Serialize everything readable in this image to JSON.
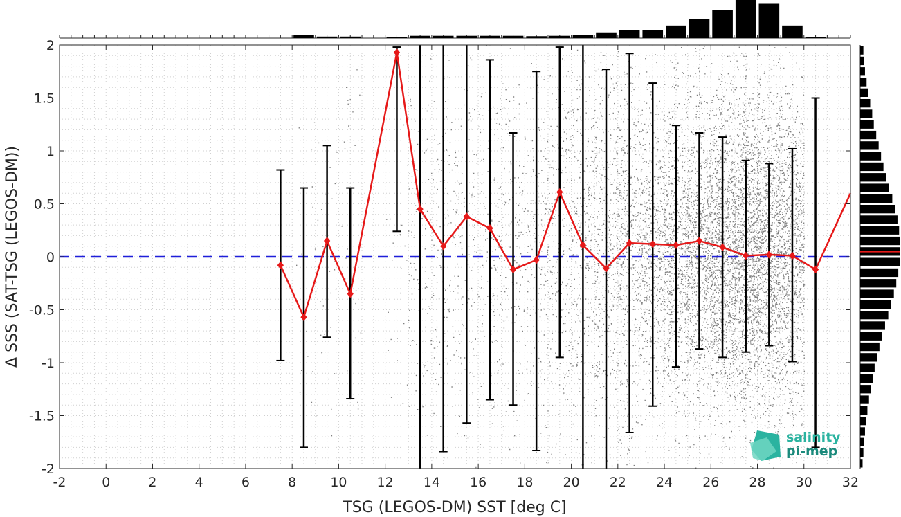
{
  "chart_data": {
    "type": "scatter",
    "xlabel": "TSG (LEGOS-DM) SST [deg C]",
    "ylabel": "Δ SSS (SAT-TSG (LEGOS-DM))",
    "xlim": [
      -2,
      32
    ],
    "ylim": [
      -2,
      2
    ],
    "x_ticks": [
      "-2",
      "0",
      "2",
      "4",
      "6",
      "8",
      "10",
      "12",
      "14",
      "16",
      "18",
      "20",
      "22",
      "24",
      "26",
      "28",
      "30",
      "32"
    ],
    "y_ticks": [
      "2",
      "1.5",
      "1",
      "0.5",
      "0",
      "-0.5",
      "-1",
      "-1.5",
      "-2"
    ],
    "grid": "dotted minor grid",
    "zero_line": {
      "y": 0,
      "style": "dashed",
      "color": "#1f1fd9"
    },
    "binned_mean": {
      "color": "#e61919",
      "x": [
        7.5,
        8.5,
        9.5,
        10.5,
        12.5,
        13.5,
        14.5,
        15.5,
        16.5,
        17.5,
        18.5,
        19.5,
        20.5,
        21.5,
        22.5,
        23.5,
        24.5,
        25.5,
        26.5,
        27.5,
        28.5,
        29.5,
        30.5,
        32
      ],
      "mean": [
        -0.08,
        -0.57,
        0.15,
        -0.35,
        1.93,
        0.45,
        0.1,
        0.38,
        0.27,
        -0.12,
        -0.03,
        0.61,
        0.11,
        -0.11,
        0.13,
        0.12,
        0.11,
        0.15,
        0.09,
        0.01,
        0.02,
        0.01,
        -0.12,
        0.6
      ],
      "err_low": [
        -0.98,
        -1.8,
        -0.76,
        -1.34,
        0.24,
        -2.0,
        -1.84,
        -1.57,
        -1.35,
        -1.4,
        -1.83,
        -0.95,
        -2.0,
        -2.0,
        -1.66,
        -1.41,
        -1.04,
        -0.87,
        -0.95,
        -0.9,
        -0.84,
        -0.99,
        -1.8,
        null
      ],
      "err_high": [
        0.82,
        0.65,
        1.05,
        0.65,
        1.98,
        2.0,
        2.0,
        2.0,
        1.86,
        1.17,
        1.75,
        1.98,
        2.0,
        1.77,
        1.92,
        1.64,
        1.24,
        1.17,
        1.13,
        0.91,
        0.88,
        1.02,
        1.5,
        null
      ]
    },
    "scatter_points": {
      "color": "#808080",
      "density_by_x": [
        {
          "x": 8.5,
          "w": 20
        },
        {
          "x": 9.5,
          "w": 30
        },
        {
          "x": 10.5,
          "w": 25
        },
        {
          "x": 12.5,
          "w": 25
        },
        {
          "x": 13.5,
          "w": 110
        },
        {
          "x": 14.5,
          "w": 130
        },
        {
          "x": 15.5,
          "w": 140
        },
        {
          "x": 16.5,
          "w": 140
        },
        {
          "x": 17.5,
          "w": 150
        },
        {
          "x": 18.5,
          "w": 180
        },
        {
          "x": 19.5,
          "w": 230
        },
        {
          "x": 20.5,
          "w": 310
        },
        {
          "x": 21.5,
          "w": 420
        },
        {
          "x": 22.5,
          "w": 520
        },
        {
          "x": 23.5,
          "w": 620
        },
        {
          "x": 24.5,
          "w": 800
        },
        {
          "x": 25.5,
          "w": 950
        },
        {
          "x": 26.5,
          "w": 1150
        },
        {
          "x": 27.5,
          "w": 1350
        },
        {
          "x": 28.5,
          "w": 1250
        },
        {
          "x": 29.5,
          "w": 900
        }
      ]
    },
    "top_histogram": {
      "color": "#000000",
      "x": [
        8.5,
        9.5,
        10.5,
        12.5,
        13.5,
        14.5,
        15.5,
        16.5,
        17.5,
        18.5,
        19.5,
        20.5,
        21.5,
        22.5,
        23.5,
        24.5,
        25.5,
        26.5,
        27.5,
        28.5,
        29.5,
        30.5
      ],
      "counts": [
        0.08,
        0.04,
        0.04,
        0.03,
        0.06,
        0.06,
        0.06,
        0.06,
        0.06,
        0.05,
        0.06,
        0.08,
        0.15,
        0.2,
        0.2,
        0.33,
        0.5,
        0.73,
        1.0,
        0.9,
        0.33,
        0.02
      ]
    },
    "right_histogram": {
      "color": "#000000",
      "mean_line_color": "#e61919",
      "mean_line_y": 0.05,
      "y": [
        1.95,
        1.85,
        1.75,
        1.65,
        1.55,
        1.45,
        1.35,
        1.25,
        1.15,
        1.05,
        0.95,
        0.85,
        0.75,
        0.65,
        0.55,
        0.45,
        0.35,
        0.25,
        0.15,
        0.05,
        -0.05,
        -0.15,
        -0.25,
        -0.35,
        -0.45,
        -0.55,
        -0.65,
        -0.75,
        -0.85,
        -0.95,
        -1.05,
        -1.15,
        -1.25,
        -1.35,
        -1.45,
        -1.55,
        -1.65,
        -1.75,
        -1.85,
        -1.95
      ],
      "counts": [
        0.08,
        0.1,
        0.12,
        0.16,
        0.2,
        0.25,
        0.3,
        0.34,
        0.4,
        0.46,
        0.52,
        0.58,
        0.65,
        0.72,
        0.8,
        0.87,
        0.93,
        0.97,
        0.99,
        1.0,
        0.99,
        0.95,
        0.9,
        0.84,
        0.77,
        0.7,
        0.62,
        0.55,
        0.48,
        0.42,
        0.36,
        0.31,
        0.26,
        0.22,
        0.18,
        0.15,
        0.12,
        0.1,
        0.08,
        0.06
      ]
    }
  },
  "logo": {
    "line1": "salinity",
    "line2": "pi-mep",
    "colors": {
      "main": "#2ab3a0",
      "dark": "#1b8a7c",
      "light": "#6fd6c2"
    }
  }
}
